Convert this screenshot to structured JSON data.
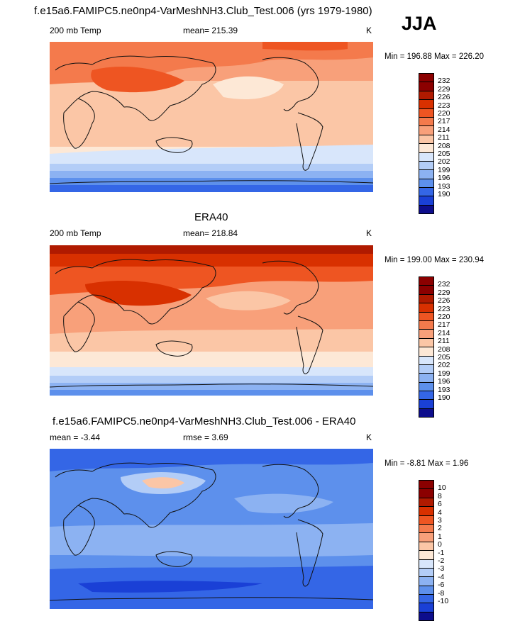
{
  "page_title": "f.e15a6.FAMIPC5.ne0np4-VarMeshNH3.Club_Test.006 (yrs 1979-1980)",
  "season": "JJA",
  "panels": [
    {
      "id": "model",
      "title": "",
      "left_label": "200 mb Temp",
      "center_label": "mean= 215.39",
      "units": "K",
      "min_max": "Min = 196.88 Max = 226.20",
      "legend": [
        "232",
        "229",
        "226",
        "223",
        "220",
        "217",
        "214",
        "211",
        "208",
        "205",
        "202",
        "199",
        "196",
        "193",
        "190"
      ]
    },
    {
      "id": "obs",
      "title": "ERA40",
      "left_label": "200 mb Temp",
      "center_label": "mean= 218.84",
      "units": "K",
      "min_max": "Min = 199.00 Max = 230.94",
      "legend": [
        "232",
        "229",
        "226",
        "223",
        "220",
        "217",
        "214",
        "211",
        "208",
        "205",
        "202",
        "199",
        "196",
        "193",
        "190"
      ]
    },
    {
      "id": "diff",
      "title": "f.e15a6.FAMIPC5.ne0np4-VarMeshNH3.Club_Test.006 - ERA40",
      "left_label": "mean =  -3.44",
      "center_label": "rmse =   3.69",
      "units": "K",
      "min_max": "Min =  -8.81 Max =   1.96",
      "legend": [
        "10",
        "8",
        "6",
        "4",
        "3",
        "2",
        "1",
        "0",
        "-1",
        "-2",
        "-3",
        "-4",
        "-6",
        "-8",
        "-10"
      ]
    }
  ],
  "colors": {
    "scale_top_to_bottom": [
      "#8b0000",
      "#b01a00",
      "#d83000",
      "#ee5522",
      "#f47a4c",
      "#f8a07a",
      "#fbc6a6",
      "#fde8d6",
      "#d8e6fb",
      "#b3cdf7",
      "#8cb2f2",
      "#5d90ec",
      "#3466e6",
      "#1a40d6",
      "#0d0d8c"
    ],
    "coast": "#111111"
  }
}
